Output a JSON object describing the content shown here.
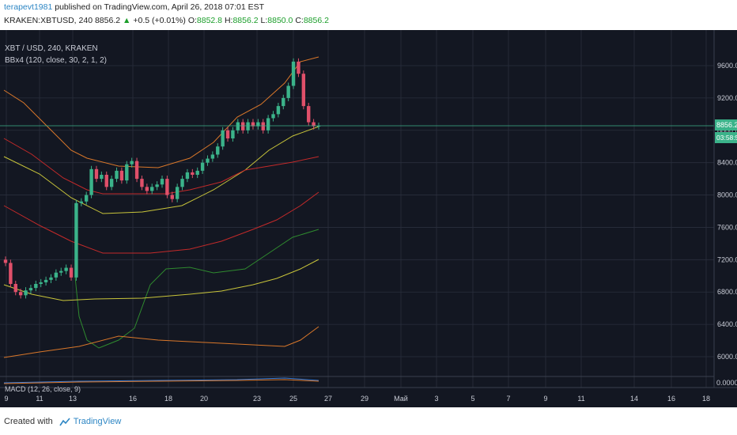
{
  "header": {
    "user": "terapevt1981",
    "published": " published on TradingView.com, April 26, 2018 07:01 EST",
    "symbol_line": "KRAKEN:XBTUSD, 240",
    "last": "8856.2",
    "change_arrow": "▲",
    "change": "+0.5 (+0.01%)",
    "o_label": "O:",
    "o": "8852.8",
    "h_label": "H:",
    "h": "8856.2",
    "l_label": "L:",
    "l": "8850.0",
    "c_label": "C:",
    "c": "8856.2"
  },
  "chart": {
    "pair_title": "XBT / USD, 240, KRAKEN",
    "indicator": "BBx4 (120, close, 30, 2, 1, 2)",
    "macd_label": "MACD (12, 26, close, 9)",
    "price_label": "8856.2",
    "countdown_label": "03:58:59",
    "macd_zero_label": "0.0000"
  },
  "colors": {
    "background": "#131722",
    "grid": "#2a2f3d",
    "up": "#3bb38a",
    "down": "#e0506a",
    "orange": "#d9772a",
    "red": "#c32a2a",
    "yellow": "#c8c43a",
    "green": "#2f8a2f",
    "price_line": "#3bb38a"
  },
  "footer": {
    "created_with": "Created with",
    "brand": "TradingView"
  },
  "chart_data": {
    "type": "candlestick",
    "symbol": "KRAKEN:XBTUSD",
    "interval": "240",
    "y_ticks": [
      6000,
      6400,
      6800,
      7200,
      7600,
      8000,
      8400,
      8800,
      9200,
      9600
    ],
    "y_tick_labels": [
      "6000.0",
      "6400.0",
      "6800.0",
      "7200.0",
      "7600.0",
      "8000.0",
      "8400.0",
      "8800.0",
      "9200.0",
      "9600.0"
    ],
    "x_tick_labels": [
      "9",
      "11",
      "13",
      "16",
      "18",
      "20",
      "23",
      "25",
      "27",
      "29",
      "Май",
      "3",
      "5",
      "7",
      "9",
      "11",
      "14",
      "16",
      "18"
    ],
    "last_price": 8856.2,
    "candles_close": [
      7160,
      6900,
      6800,
      6760,
      6820,
      6850,
      6900,
      6920,
      6950,
      6980,
      7040,
      7060,
      7100,
      6980,
      7900,
      7920,
      8000,
      8320,
      8200,
      8250,
      8100,
      8200,
      8300,
      8180,
      8380,
      8420,
      8200,
      8100,
      8050,
      8100,
      8130,
      8200,
      8000,
      7950,
      8100,
      8200,
      8280,
      8250,
      8300,
      8400,
      8450,
      8500,
      8600,
      8800,
      8700,
      8800,
      8900,
      8800,
      8900,
      8850,
      8900,
      8800,
      8950,
      9000,
      9100,
      9200,
      9350,
      9650,
      9500,
      9100,
      8900,
      8850,
      8856
    ]
  }
}
